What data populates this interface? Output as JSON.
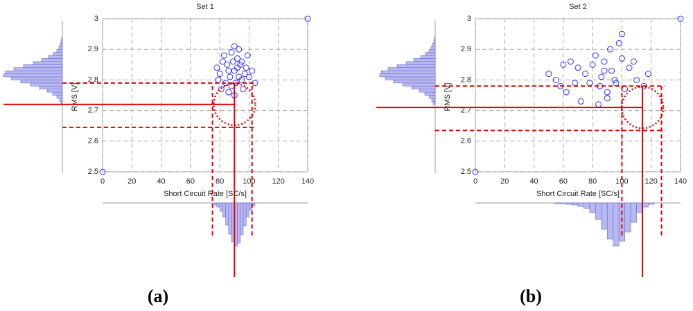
{
  "chart_data": [
    {
      "type": "scatter",
      "title": "Set 1",
      "x_label": "Short Circuit Rate [SC/s]",
      "y_label": "RMS [V]",
      "panel_label": "(a)",
      "color": "#0000ff",
      "hist_color": "#b8b8f0",
      "ref_color": "#e00000",
      "grid": true,
      "xlim": [
        0,
        140
      ],
      "ylim": [
        2.5,
        3
      ],
      "xticks": [
        0,
        20,
        40,
        60,
        80,
        100,
        120,
        140
      ],
      "yticks": [
        2.5,
        2.6,
        2.7,
        2.8,
        2.9,
        3
      ],
      "x": [
        0,
        140,
        90,
        85,
        95,
        88,
        92,
        80,
        98,
        86,
        93,
        83,
        100,
        89,
        91,
        78,
        96,
        87,
        94,
        84,
        99,
        90,
        82,
        97,
        88,
        102,
        79,
        92,
        86,
        95,
        90,
        104,
        81,
        93
      ],
      "values": [
        2.5,
        3,
        2.83,
        2.85,
        2.8,
        2.78,
        2.87,
        2.82,
        2.84,
        2.76,
        2.9,
        2.88,
        2.81,
        2.86,
        2.79,
        2.84,
        2.77,
        2.81,
        2.85,
        2.79,
        2.88,
        2.75,
        2.86,
        2.82,
        2.89,
        2.83,
        2.8,
        2.84,
        2.83,
        2.86,
        2.91,
        2.79,
        2.77,
        2.81
      ],
      "x_histogram": {
        "bins": [
          76,
          78,
          80,
          82,
          84,
          86,
          88,
          90,
          92,
          94,
          96,
          98,
          100,
          102,
          104
        ],
        "counts": [
          3,
          6,
          12,
          20,
          32,
          45,
          56,
          62,
          58,
          46,
          33,
          20,
          10,
          4
        ]
      },
      "y_histogram": {
        "bins": [
          2.72,
          2.73,
          2.74,
          2.75,
          2.76,
          2.77,
          2.78,
          2.79,
          2.8,
          2.81,
          2.82,
          2.83,
          2.84,
          2.85,
          2.86,
          2.87,
          2.88,
          2.89,
          2.9,
          2.91,
          2.92,
          2.93,
          2.94
        ],
        "counts": [
          2,
          4,
          8,
          14,
          22,
          33,
          46,
          60,
          74,
          85,
          82,
          70,
          56,
          42,
          30,
          20,
          13,
          8,
          5,
          3,
          2,
          1
        ]
      },
      "ref_x": {
        "mean": 90,
        "low": 75,
        "high": 102
      },
      "ref_y": {
        "mean": 2.72,
        "low": 2.645,
        "high": 2.79
      }
    },
    {
      "type": "scatter",
      "title": "Set 2",
      "x_label": "Short Circuit Rate [SC/s]",
      "y_label": "RMS [V]",
      "panel_label": "(b)",
      "color": "#0000ff",
      "hist_color": "#b8b8f0",
      "ref_color": "#e00000",
      "grid": true,
      "xlim": [
        0,
        140
      ],
      "ylim": [
        2.5,
        3
      ],
      "xticks": [
        0,
        20,
        40,
        60,
        80,
        100,
        120,
        140
      ],
      "yticks": [
        2.5,
        2.6,
        2.7,
        2.8,
        2.9,
        3
      ],
      "x": [
        0,
        140,
        88,
        80,
        95,
        85,
        100,
        75,
        105,
        90,
        92,
        82,
        110,
        88,
        96,
        70,
        102,
        86,
        98,
        78,
        108,
        90,
        65,
        55,
        60,
        62,
        50,
        115,
        72,
        84,
        100,
        93,
        118,
        68,
        58
      ],
      "values": [
        2.5,
        3,
        2.83,
        2.85,
        2.8,
        2.78,
        2.87,
        2.82,
        2.84,
        2.76,
        2.9,
        2.88,
        2.8,
        2.86,
        2.79,
        2.84,
        2.77,
        2.81,
        2.92,
        2.79,
        2.86,
        2.74,
        2.86,
        2.8,
        2.85,
        2.76,
        2.82,
        2.78,
        2.73,
        2.72,
        2.95,
        2.83,
        2.82,
        2.79,
        2.78
      ],
      "x_histogram": {
        "bins": [
          54,
          58,
          62,
          66,
          70,
          74,
          78,
          82,
          86,
          90,
          94,
          98,
          102,
          106,
          110,
          114,
          118,
          122
        ],
        "counts": [
          1,
          1,
          2,
          3,
          5,
          8,
          14,
          24,
          38,
          52,
          62,
          55,
          42,
          28,
          14,
          6,
          2
        ]
      },
      "y_histogram": {
        "bins": [
          2.72,
          2.73,
          2.74,
          2.75,
          2.76,
          2.77,
          2.78,
          2.79,
          2.8,
          2.81,
          2.82,
          2.83,
          2.84,
          2.85,
          2.86,
          2.87,
          2.88,
          2.89,
          2.9,
          2.91,
          2.92,
          2.93,
          2.94
        ],
        "counts": [
          3,
          5,
          9,
          15,
          23,
          34,
          47,
          60,
          72,
          80,
          78,
          68,
          55,
          42,
          31,
          21,
          14,
          9,
          6,
          4,
          2,
          1
        ]
      },
      "ref_x": {
        "mean": 114,
        "low": 100,
        "high": 127
      },
      "ref_y": {
        "mean": 2.71,
        "low": 2.635,
        "high": 2.78
      }
    }
  ]
}
